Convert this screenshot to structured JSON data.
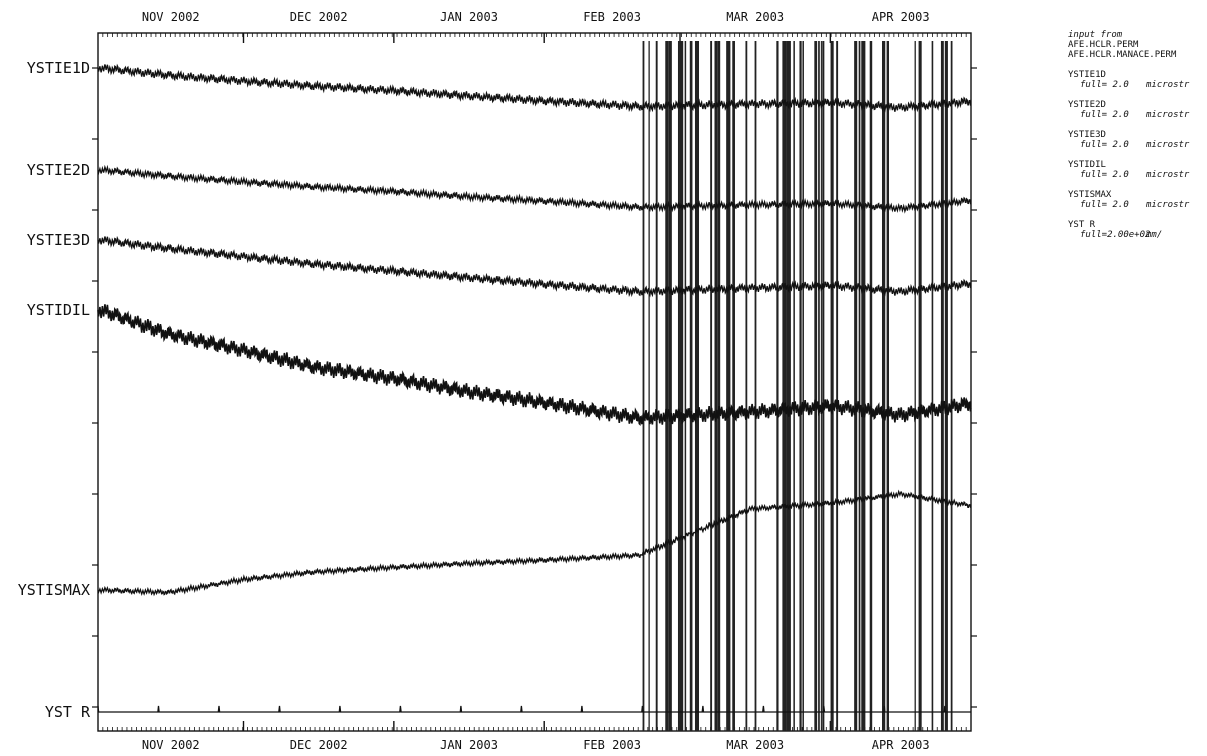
{
  "chart_data": {
    "type": "line",
    "title": "",
    "xlabel": "",
    "ylabel": "",
    "x_months": [
      "NOV 2002",
      "DEC 2002",
      "JAN 2003",
      "FEB 2003",
      "MAR 2003",
      "APR 2003"
    ],
    "x_start": "2002-11-01",
    "x_end": "2003-04-30",
    "grid": false,
    "dropout_period": [
      "2003-02-21",
      "2003-04-29"
    ],
    "series": [
      {
        "name": "YSTIE1D",
        "full_scale": "full= 2.0",
        "unit": "microstr",
        "points": [
          [
            "2002-11-01",
            0.0
          ],
          [
            "2002-11-15",
            -0.12
          ],
          [
            "2002-12-01",
            -0.22
          ],
          [
            "2002-12-15",
            -0.3
          ],
          [
            "2003-01-01",
            -0.38
          ],
          [
            "2003-01-15",
            -0.46
          ],
          [
            "2003-02-01",
            -0.55
          ],
          [
            "2003-02-20",
            -0.64
          ],
          [
            "2003-03-15",
            -0.6
          ],
          [
            "2003-04-01",
            -0.58
          ],
          [
            "2003-04-15",
            -0.66
          ],
          [
            "2003-04-30",
            -0.55
          ]
        ]
      },
      {
        "name": "YSTIE2D",
        "full_scale": "full= 2.0",
        "unit": "microstr",
        "points": [
          [
            "2002-11-01",
            0.0
          ],
          [
            "2002-11-15",
            -0.1
          ],
          [
            "2002-12-01",
            -0.2
          ],
          [
            "2002-12-15",
            -0.28
          ],
          [
            "2003-01-01",
            -0.36
          ],
          [
            "2003-01-15",
            -0.44
          ],
          [
            "2003-02-01",
            -0.52
          ],
          [
            "2003-02-20",
            -0.62
          ],
          [
            "2003-03-15",
            -0.58
          ],
          [
            "2003-04-01",
            -0.56
          ],
          [
            "2003-04-15",
            -0.64
          ],
          [
            "2003-04-30",
            -0.5
          ]
        ]
      },
      {
        "name": "YSTIE3D",
        "full_scale": "full= 2.0",
        "unit": "microstr",
        "points": [
          [
            "2002-11-01",
            0.0
          ],
          [
            "2002-11-15",
            -0.14
          ],
          [
            "2002-12-01",
            -0.28
          ],
          [
            "2002-12-15",
            -0.4
          ],
          [
            "2003-01-01",
            -0.52
          ],
          [
            "2003-01-15",
            -0.62
          ],
          [
            "2003-02-01",
            -0.74
          ],
          [
            "2003-02-20",
            -0.86
          ],
          [
            "2003-03-15",
            -0.8
          ],
          [
            "2003-04-01",
            -0.76
          ],
          [
            "2003-04-15",
            -0.86
          ],
          [
            "2003-04-30",
            -0.72
          ]
        ]
      },
      {
        "name": "YSTIDIL",
        "full_scale": "full= 2.0",
        "unit": "microstr",
        "points": [
          [
            "2002-11-01",
            0.0
          ],
          [
            "2002-11-15",
            -0.4
          ],
          [
            "2002-12-01",
            -0.68
          ],
          [
            "2002-12-15",
            -0.95
          ],
          [
            "2003-01-01",
            -1.15
          ],
          [
            "2003-01-15",
            -1.35
          ],
          [
            "2003-02-01",
            -1.55
          ],
          [
            "2003-02-20",
            -1.8
          ],
          [
            "2003-03-15",
            -1.7
          ],
          [
            "2003-04-01",
            -1.6
          ],
          [
            "2003-04-15",
            -1.75
          ],
          [
            "2003-04-30",
            -1.55
          ]
        ]
      },
      {
        "name": "YSTISMAX",
        "full_scale": "full= 2.0",
        "unit": "microstr",
        "points": [
          [
            "2002-11-01",
            0.0
          ],
          [
            "2002-11-15",
            -0.04
          ],
          [
            "2002-12-01",
            0.18
          ],
          [
            "2002-12-15",
            0.3
          ],
          [
            "2003-01-01",
            0.38
          ],
          [
            "2003-01-15",
            0.44
          ],
          [
            "2003-02-01",
            0.5
          ],
          [
            "2003-02-20",
            0.58
          ],
          [
            "2003-03-15",
            1.35
          ],
          [
            "2003-04-01",
            1.45
          ],
          [
            "2003-04-15",
            1.6
          ],
          [
            "2003-04-30",
            1.4
          ]
        ]
      },
      {
        "name": "YST R",
        "full_scale": "full=2.00e+02",
        "unit": "mm/",
        "points": [
          [
            "2002-11-01",
            0.0
          ],
          [
            "2002-12-01",
            0.0
          ],
          [
            "2003-01-01",
            0.0
          ],
          [
            "2003-02-01",
            0.0
          ],
          [
            "2003-03-01",
            0.0
          ],
          [
            "2003-04-01",
            0.0
          ],
          [
            "2003-04-30",
            0.0
          ]
        ]
      }
    ]
  },
  "legend": {
    "input_from": "input from",
    "sources": [
      "AFE.HCLR.PERM",
      "AFE.HCLR.MANACE.PERM"
    ]
  }
}
